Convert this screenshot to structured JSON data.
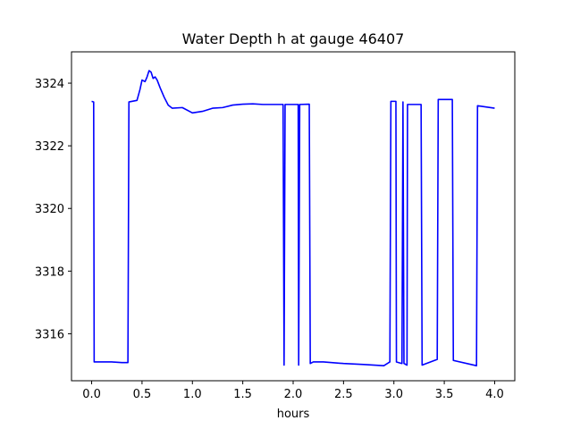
{
  "chart_data": {
    "type": "line",
    "title": "Water Depth h at gauge 46407",
    "xlabel": "hours",
    "ylabel": "",
    "xlim": [
      -0.2,
      4.2
    ],
    "ylim": [
      3314.5,
      3325.0
    ],
    "xticks": [
      0.0,
      0.5,
      1.0,
      1.5,
      2.0,
      2.5,
      3.0,
      3.5,
      4.0
    ],
    "xtick_labels": [
      "0.0",
      "0.5",
      "1.0",
      "1.5",
      "2.0",
      "2.5",
      "3.0",
      "3.5",
      "4.0"
    ],
    "yticks": [
      3316,
      3318,
      3320,
      3322,
      3324
    ],
    "ytick_labels": [
      "3316",
      "3318",
      "3320",
      "3322",
      "3324"
    ],
    "grid": false,
    "series": [
      {
        "color": "#0000ff",
        "x": [
          0.0,
          0.02,
          0.025,
          0.1,
          0.2,
          0.3,
          0.36,
          0.37,
          0.45,
          0.48,
          0.5,
          0.53,
          0.55,
          0.57,
          0.59,
          0.61,
          0.63,
          0.65,
          0.68,
          0.72,
          0.76,
          0.8,
          0.9,
          1.0,
          1.1,
          1.2,
          1.3,
          1.4,
          1.5,
          1.6,
          1.7,
          1.8,
          1.9,
          1.91,
          1.92,
          1.93,
          2.05,
          2.055,
          2.065,
          2.16,
          2.17,
          2.2,
          2.3,
          2.5,
          2.7,
          2.9,
          2.96,
          2.97,
          3.02,
          3.025,
          3.08,
          3.09,
          3.1,
          3.13,
          3.135,
          3.27,
          3.28,
          3.43,
          3.44,
          3.58,
          3.59,
          3.82,
          3.83,
          4.0
        ],
        "y": [
          3323.42,
          3323.4,
          3315.1,
          3315.1,
          3315.1,
          3315.08,
          3315.08,
          3323.4,
          3323.45,
          3323.8,
          3324.1,
          3324.05,
          3324.2,
          3324.4,
          3324.35,
          3324.15,
          3324.2,
          3324.1,
          3323.85,
          3323.55,
          3323.3,
          3323.2,
          3323.22,
          3323.05,
          3323.1,
          3323.2,
          3323.22,
          3323.3,
          3323.33,
          3323.34,
          3323.32,
          3323.32,
          3323.32,
          3315.0,
          3323.32,
          3323.32,
          3323.32,
          3315.0,
          3323.32,
          3323.33,
          3315.05,
          3315.1,
          3315.1,
          3315.05,
          3315.02,
          3314.98,
          3315.1,
          3323.42,
          3323.42,
          3315.1,
          3315.05,
          3323.4,
          3315.05,
          3315.0,
          3323.32,
          3323.32,
          3315.0,
          3315.18,
          3323.48,
          3323.48,
          3315.15,
          3314.98,
          3323.28,
          3323.2
        ]
      }
    ]
  }
}
